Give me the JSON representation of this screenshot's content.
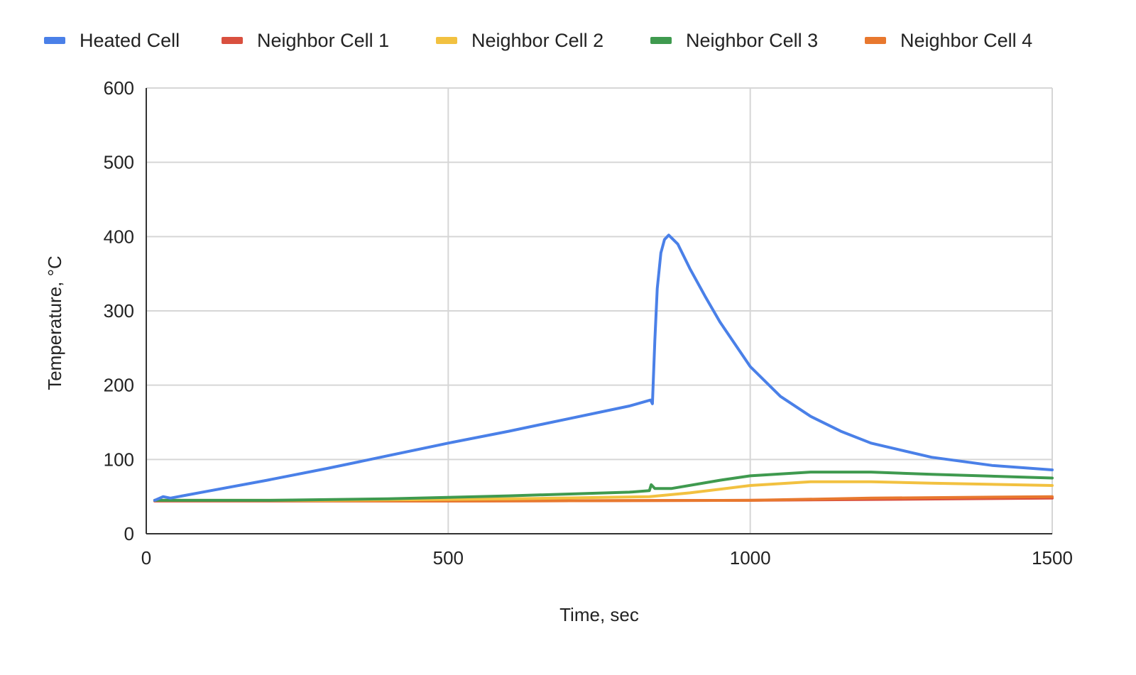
{
  "chart_data": {
    "type": "line",
    "title": "",
    "xlabel": "Time, sec",
    "ylabel": "Temperature, °C",
    "xlim": [
      0,
      1500
    ],
    "ylim": [
      0,
      600
    ],
    "xticks": [
      0,
      500,
      1000,
      1500
    ],
    "yticks": [
      0,
      100,
      200,
      300,
      400,
      500,
      600
    ],
    "grid": true,
    "legend_position": "top",
    "series": [
      {
        "name": "Heated Cell",
        "color": "#4a80e8",
        "x": [
          14,
          28,
          40,
          100,
          200,
          300,
          400,
          500,
          600,
          700,
          800,
          835,
          838,
          842,
          846,
          852,
          858,
          865,
          880,
          900,
          925,
          950,
          1000,
          1050,
          1100,
          1150,
          1200,
          1300,
          1400,
          1500
        ],
        "y": [
          45,
          50,
          48,
          57,
          72,
          88,
          105,
          122,
          138,
          155,
          172,
          180,
          175,
          260,
          330,
          378,
          396,
          402,
          390,
          357,
          320,
          285,
          225,
          185,
          158,
          138,
          122,
          103,
          92,
          86
        ]
      },
      {
        "name": "Neighbor Cell 1",
        "color": "#d9503f",
        "x": [
          14,
          500,
          1000,
          1500
        ],
        "y": [
          44,
          44,
          45,
          48
        ]
      },
      {
        "name": "Neighbor Cell 2",
        "color": "#f2c140",
        "x": [
          14,
          300,
          600,
          833,
          900,
          1000,
          1100,
          1200,
          1300,
          1500
        ],
        "y": [
          45,
          45,
          47,
          50,
          55,
          65,
          70,
          70,
          68,
          65
        ]
      },
      {
        "name": "Neighbor Cell 3",
        "color": "#3f9a4f",
        "x": [
          14,
          200,
          400,
          600,
          800,
          833,
          836,
          842,
          870,
          950,
          1000,
          1100,
          1200,
          1300,
          1500
        ],
        "y": [
          45,
          45,
          47,
          51,
          56,
          58,
          66,
          61,
          61,
          72,
          78,
          83,
          83,
          80,
          75
        ]
      },
      {
        "name": "Neighbor Cell 4",
        "color": "#e8782e",
        "x": [
          14,
          500,
          1000,
          1200,
          1500
        ],
        "y": [
          45,
          44,
          45,
          48,
          50
        ]
      }
    ]
  }
}
